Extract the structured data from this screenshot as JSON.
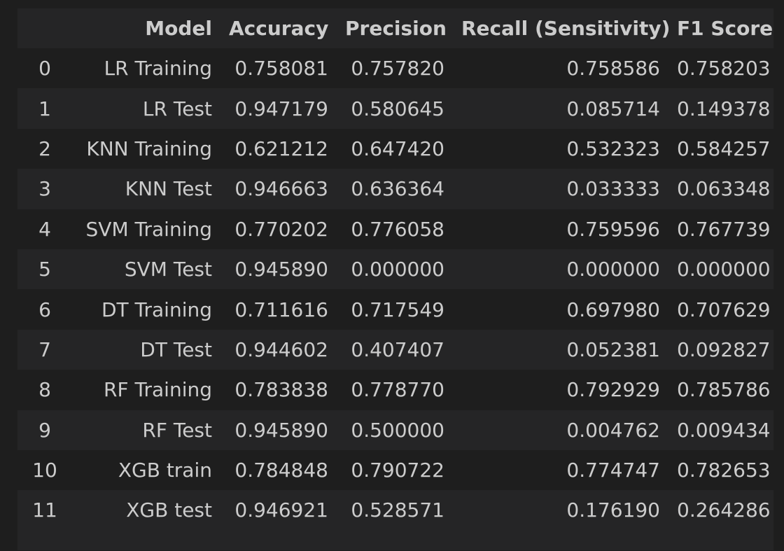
{
  "table": {
    "index_header": "",
    "columns": [
      "Model",
      "Accuracy",
      "Precision",
      "Recall (Sensitivity)",
      "F1 Score"
    ],
    "rows": [
      {
        "index": "0",
        "cells": [
          "LR Training",
          "0.758081",
          "0.757820",
          "0.758586",
          "0.758203"
        ]
      },
      {
        "index": "1",
        "cells": [
          "LR Test",
          "0.947179",
          "0.580645",
          "0.085714",
          "0.149378"
        ]
      },
      {
        "index": "2",
        "cells": [
          "KNN Training",
          "0.621212",
          "0.647420",
          "0.532323",
          "0.584257"
        ]
      },
      {
        "index": "3",
        "cells": [
          "KNN Test",
          "0.946663",
          "0.636364",
          "0.033333",
          "0.063348"
        ]
      },
      {
        "index": "4",
        "cells": [
          "SVM Training",
          "0.770202",
          "0.776058",
          "0.759596",
          "0.767739"
        ]
      },
      {
        "index": "5",
        "cells": [
          "SVM Test",
          "0.945890",
          "0.000000",
          "0.000000",
          "0.000000"
        ]
      },
      {
        "index": "6",
        "cells": [
          "DT Training",
          "0.711616",
          "0.717549",
          "0.697980",
          "0.707629"
        ]
      },
      {
        "index": "7",
        "cells": [
          "DT Test",
          "0.944602",
          "0.407407",
          "0.052381",
          "0.092827"
        ]
      },
      {
        "index": "8",
        "cells": [
          "RF Training",
          "0.783838",
          "0.778770",
          "0.792929",
          "0.785786"
        ]
      },
      {
        "index": "9",
        "cells": [
          "RF Test",
          "0.945890",
          "0.500000",
          "0.004762",
          "0.009434"
        ]
      },
      {
        "index": "10",
        "cells": [
          "XGB train",
          "0.784848",
          "0.790722",
          "0.774747",
          "0.782653"
        ]
      },
      {
        "index": "11",
        "cells": [
          "XGB test",
          "0.946921",
          "0.528571",
          "0.176190",
          "0.264286"
        ]
      }
    ]
  },
  "colors": {
    "background": "#1e1e1e",
    "header_background": "#252526",
    "stripe_background": "#252526",
    "text": "#cccccc"
  }
}
